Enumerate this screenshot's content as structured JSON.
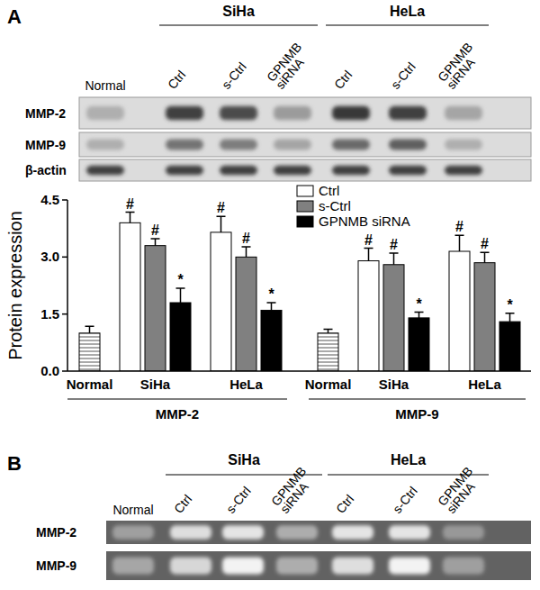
{
  "lanes": [
    "Normal",
    "Ctrl",
    "s-Ctrl",
    "GPNMB siRNA",
    "Ctrl",
    "s-Ctrl",
    "GPNMB siRNA"
  ],
  "cell_lines": [
    "SiHa",
    "HeLa"
  ],
  "panel_a": {
    "label": "A",
    "blot": {
      "rows": [
        {
          "label": "MMP-2",
          "bands": [
            0.3,
            0.85,
            0.8,
            0.4,
            0.9,
            0.85,
            0.35
          ]
        },
        {
          "label": "MMP-9",
          "bands": [
            0.3,
            0.6,
            0.55,
            0.35,
            0.65,
            0.7,
            0.3
          ]
        },
        {
          "label": "β-actin",
          "bands": [
            0.85,
            0.85,
            0.85,
            0.85,
            0.85,
            0.85,
            0.85
          ]
        }
      ]
    }
  },
  "chart_data": {
    "type": "bar",
    "y_label": "Protein expression",
    "ylim": [
      0,
      4.5
    ],
    "yticks": [
      {
        "value": 0,
        "label": "0.0"
      },
      1.5,
      {
        "value": 3,
        "label": "3.0"
      },
      4.5
    ],
    "legend": "top",
    "groups": [
      {
        "label": "MMP-2",
        "categories": [
          "Normal",
          "SiHa",
          "HeLa"
        ]
      },
      {
        "label": "MMP-9",
        "categories": [
          "Normal",
          "SiHa",
          "HeLa"
        ]
      }
    ],
    "baseline": {
      "color": "#ffffff",
      "values": [
        1.0,
        null,
        null,
        1.0,
        null,
        null
      ],
      "errors": [
        0.18,
        null,
        null,
        0.1,
        null,
        null
      ]
    },
    "series": [
      {
        "name": "Ctrl",
        "color": "#ffffff",
        "values": [
          null,
          3.9,
          3.65,
          null,
          2.9,
          3.15
        ],
        "errors": [
          null,
          0.28,
          0.42,
          null,
          0.33,
          0.42
        ],
        "annotations": [
          null,
          "#",
          "#",
          null,
          "#",
          "#"
        ]
      },
      {
        "name": "s-Ctrl",
        "color": "#808080",
        "values": [
          null,
          3.3,
          3.0,
          null,
          2.8,
          2.85
        ],
        "errors": [
          null,
          0.18,
          0.27,
          null,
          0.3,
          0.27
        ],
        "annotations": [
          null,
          "#",
          "#",
          null,
          "#",
          "#"
        ]
      },
      {
        "name": "GPNMB siRNA",
        "color": "#000000",
        "values": [
          null,
          1.8,
          1.6,
          null,
          1.4,
          1.3
        ],
        "errors": [
          null,
          0.38,
          0.2,
          null,
          0.15,
          0.22
        ],
        "annotations": [
          null,
          "*",
          "*",
          null,
          "*",
          "*"
        ]
      }
    ]
  },
  "panel_b": {
    "label": "B",
    "gel": {
      "rows": [
        {
          "label": "MMP-2",
          "bands": [
            0.35,
            0.8,
            0.85,
            0.45,
            0.85,
            0.85,
            0.3
          ]
        },
        {
          "label": "MMP-9",
          "bands": [
            0.4,
            0.75,
            0.95,
            0.45,
            0.8,
            0.95,
            0.35
          ]
        }
      ]
    }
  }
}
